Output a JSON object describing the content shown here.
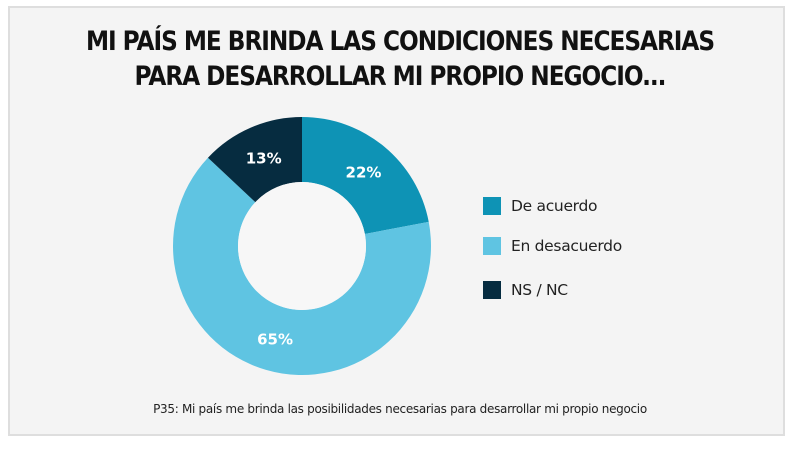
{
  "chart_data": {
    "type": "pie",
    "variant": "donut",
    "title": "MI PAÍS ME BRINDA LAS CONDICIONES NECESARIAS PARA DESARROLLAR MI PROPIO NEGOCIO...",
    "title_lines": [
      "MI PAÍS ME BRINDA LAS CONDICIONES NECESARIAS",
      "PARA DESARROLLAR MI PROPIO NEGOCIO..."
    ],
    "slices": [
      {
        "label": "De acuerdo",
        "value": 22,
        "display": "22%",
        "color": "#0e93b5"
      },
      {
        "label": "En desacuerdo",
        "value": 65,
        "display": "65%",
        "color": "#5fc4e2"
      },
      {
        "label": "NS / NC",
        "value": 13,
        "display": "13%",
        "color": "#062c40"
      }
    ],
    "start_angle_deg": 0,
    "direction": "clockwise",
    "legend_position": "right",
    "footnote": "P35: Mi país me brinda las posibilidades necesarias para desarrollar mi propio negocio"
  }
}
